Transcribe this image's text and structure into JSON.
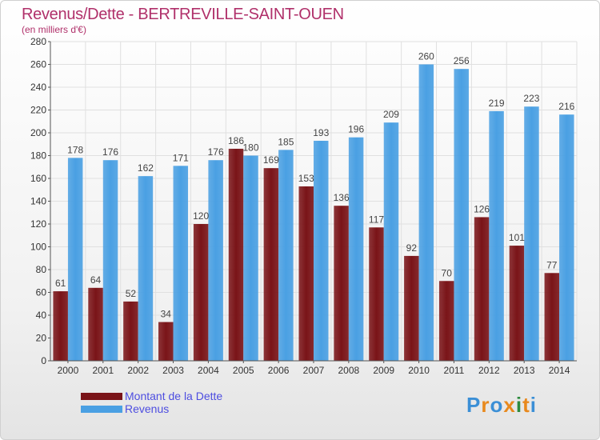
{
  "chart_data": {
    "type": "bar",
    "title": "Revenus/Dette - BERTREVILLE-SAINT-OUEN",
    "subtitle": "(en milliers d'€)",
    "categories": [
      "2000",
      "2001",
      "2002",
      "2003",
      "2004",
      "2005",
      "2006",
      "2007",
      "2008",
      "2009",
      "2010",
      "2011",
      "2012",
      "2013",
      "2014"
    ],
    "series": [
      {
        "name": "Montant de la Dette",
        "color": "#7a1418",
        "values": [
          61,
          64,
          52,
          34,
          120,
          186,
          169,
          153,
          136,
          117,
          92,
          70,
          126,
          101,
          77
        ]
      },
      {
        "name": "Revenus",
        "color": "#4aa0e3",
        "values": [
          178,
          176,
          162,
          171,
          176,
          180,
          185,
          193,
          196,
          209,
          260,
          256,
          219,
          223,
          216
        ]
      }
    ],
    "ylim": [
      0,
      280
    ],
    "yticks": [
      0,
      20,
      40,
      60,
      80,
      100,
      120,
      140,
      160,
      180,
      200,
      220,
      240,
      260,
      280
    ],
    "grid": true,
    "legend_position": "bottom-left"
  },
  "logo": {
    "letters": [
      "P",
      "r",
      "o",
      "x",
      "i",
      "t",
      "i"
    ],
    "colors": [
      "#3b8fd6",
      "#e8891d",
      "#3b8fd6",
      "#e8891d",
      "#2e8b3e",
      "#e8891d",
      "#3b8fd6"
    ]
  }
}
